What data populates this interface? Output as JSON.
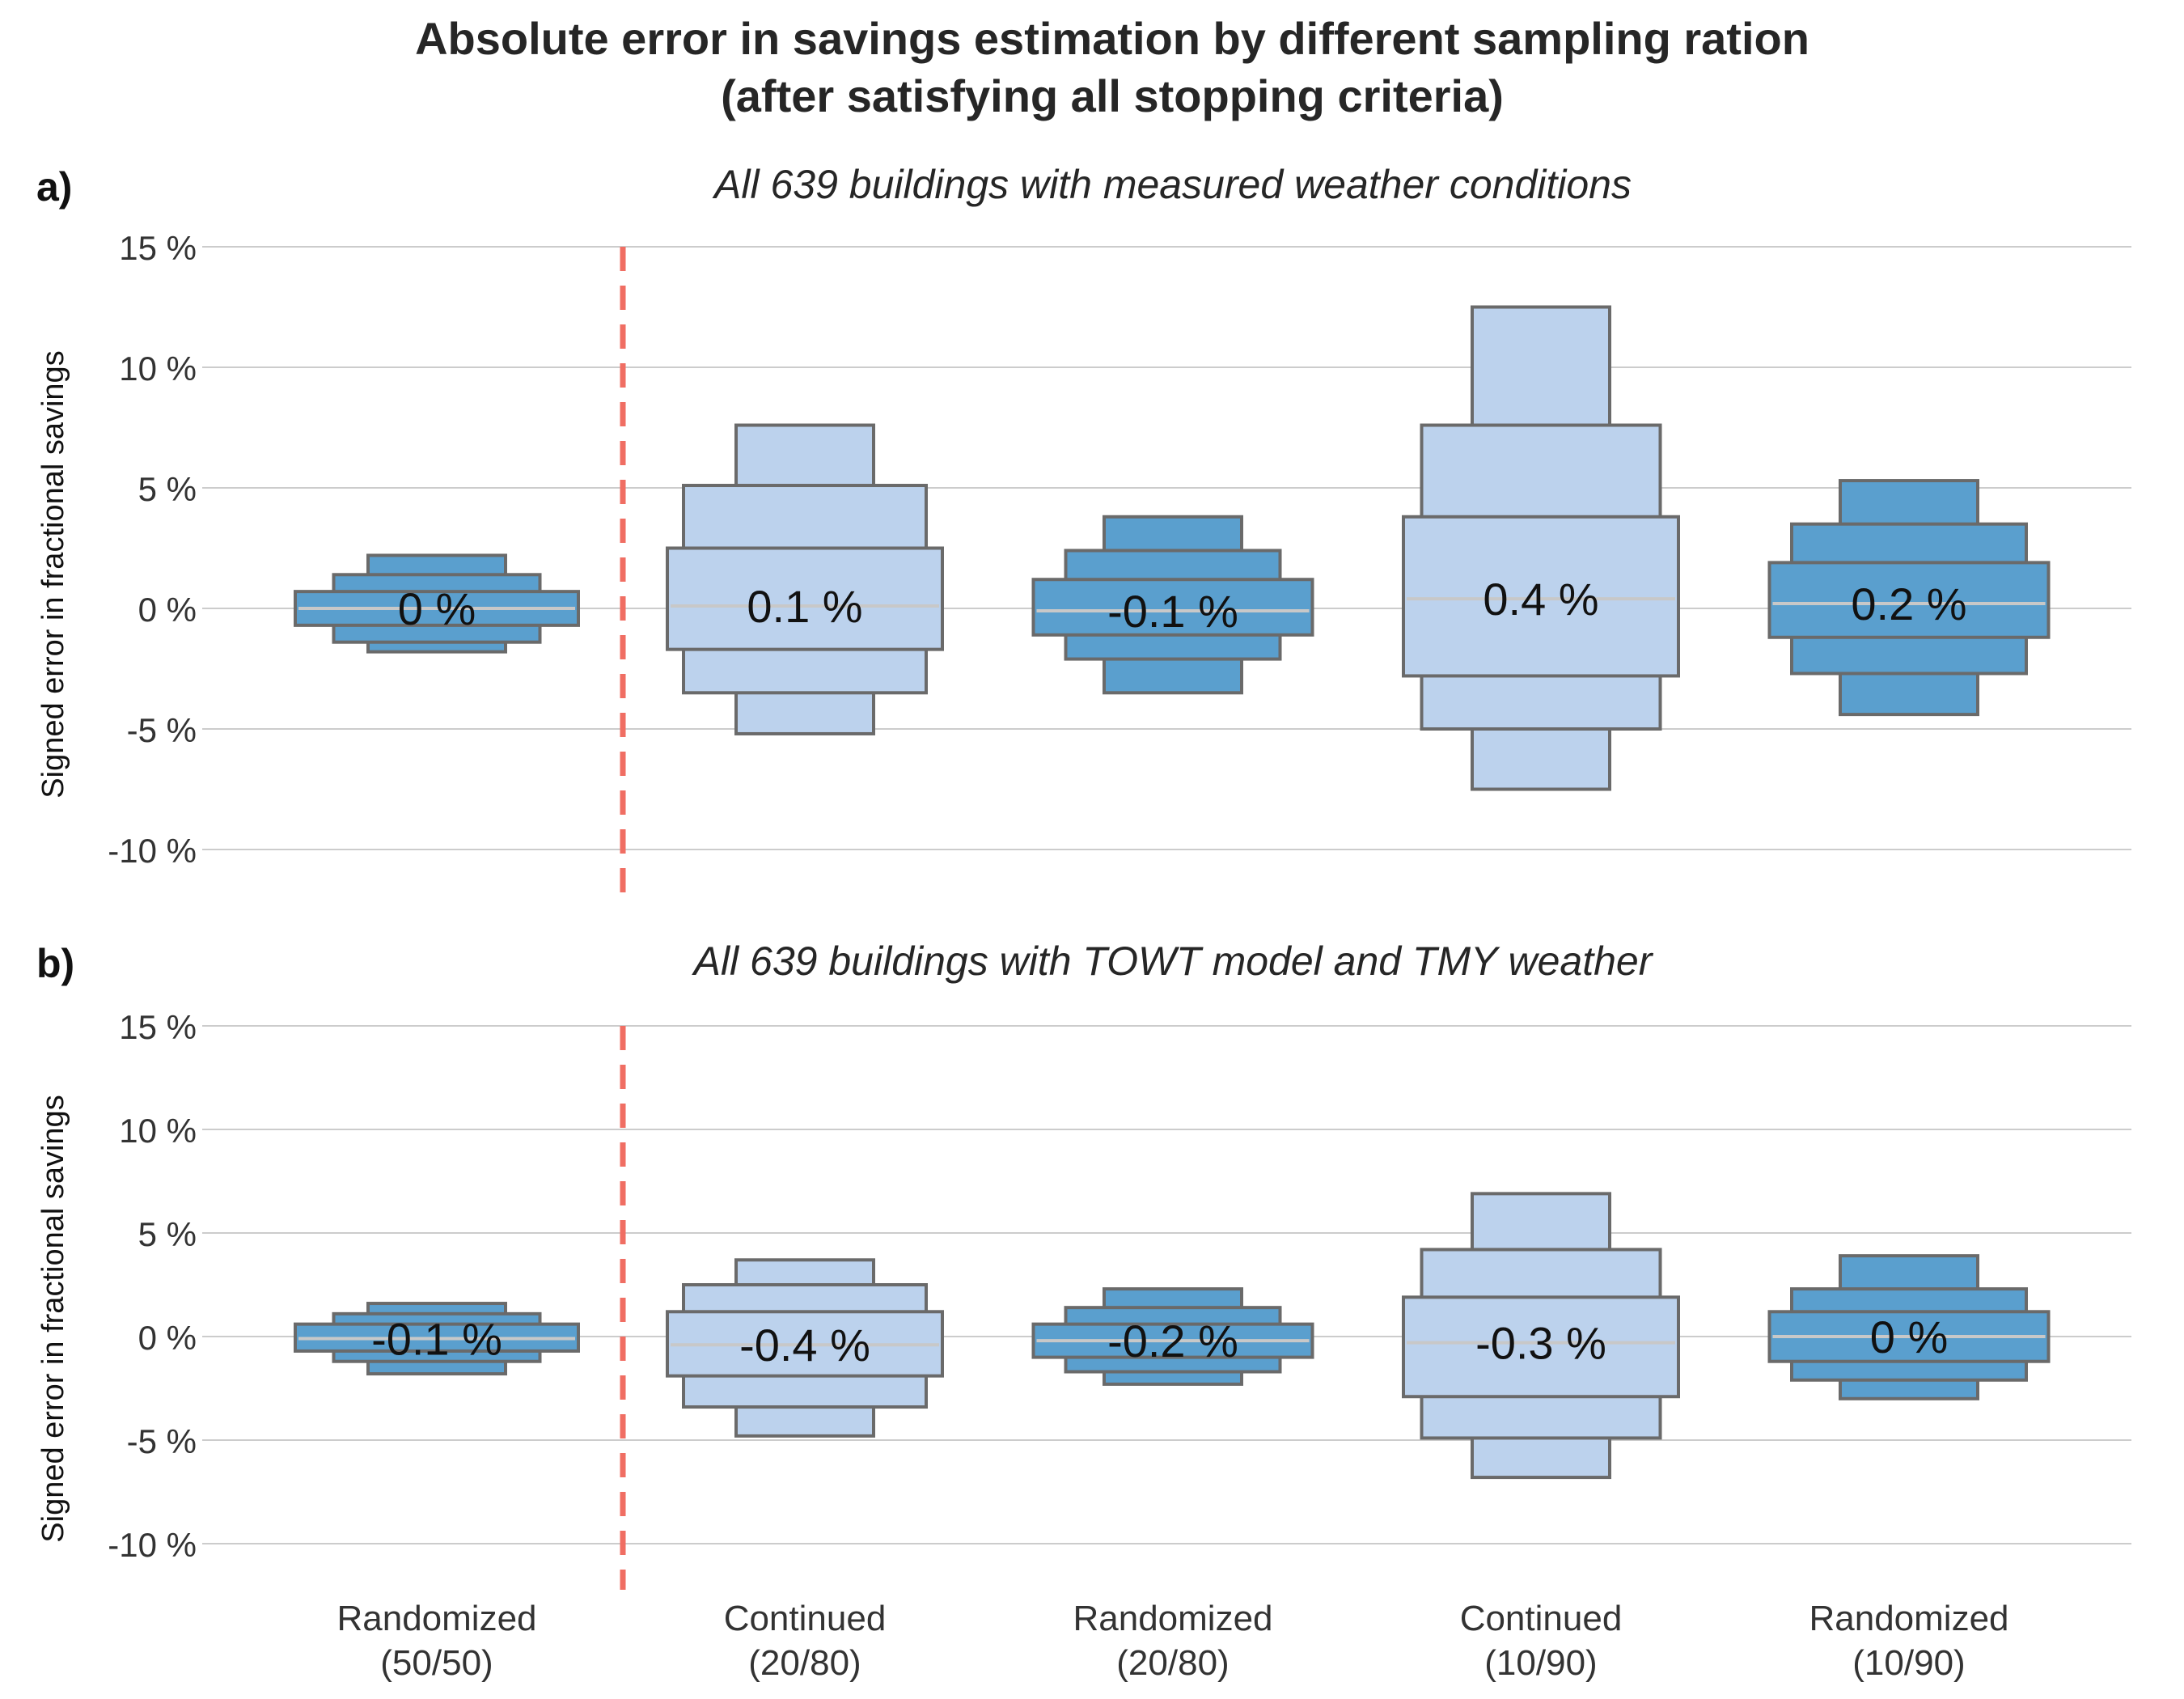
{
  "title_line1": "Absolute error in savings estimation by different sampling ration",
  "title_line2": "(after satisfying all stopping criteria)",
  "colors": {
    "dark": "#5a9fce",
    "light": "#bcd2ed",
    "edge": "#6a6a6a",
    "median": "#c8c8c8",
    "grid": "#cccccc",
    "divider": "#f06e63",
    "text": "#333333"
  },
  "chart_data": [
    {
      "type": "boxenplot",
      "panel_label": "a)",
      "title": "All 639 buildings with measured weather conditions",
      "ylabel": "Signed error in fractional savings",
      "ylim": [
        -11.5,
        15.0
      ],
      "yticks": [
        15,
        10,
        5,
        0,
        -5,
        -10
      ],
      "ytick_labels": [
        "15 %",
        "10 %",
        "5 %",
        "0 %",
        "-5 %",
        "-10 %"
      ],
      "grid": true,
      "divider_after_category": 0,
      "categories": [
        {
          "label": [
            "Randomized",
            "(50/50)"
          ],
          "color": "dark",
          "median": 0.0,
          "label_text": "0 %",
          "levels": [
            [
              -0.7,
              0.7
            ],
            [
              -1.4,
              1.4
            ],
            [
              -1.8,
              2.2
            ]
          ]
        },
        {
          "label": [
            "Continued",
            "(20/80)"
          ],
          "color": "light",
          "median": 0.1,
          "label_text": "0.1 %",
          "levels": [
            [
              -1.7,
              2.5
            ],
            [
              -3.5,
              5.1
            ],
            [
              -5.2,
              7.6
            ]
          ]
        },
        {
          "label": [
            "Randomized",
            "(20/80)"
          ],
          "color": "dark",
          "median": -0.1,
          "label_text": "-0.1 %",
          "levels": [
            [
              -1.1,
              1.2
            ],
            [
              -2.1,
              2.4
            ],
            [
              -3.5,
              3.8
            ]
          ]
        },
        {
          "label": [
            "Continued",
            "(10/90)"
          ],
          "color": "light",
          "median": 0.4,
          "label_text": "0.4 %",
          "levels": [
            [
              -2.8,
              3.8
            ],
            [
              -5.0,
              7.6
            ],
            [
              -7.5,
              12.5
            ]
          ]
        },
        {
          "label": [
            "Randomized",
            "(10/90)"
          ],
          "color": "dark",
          "median": 0.2,
          "label_text": "0.2 %",
          "levels": [
            [
              -1.2,
              1.9
            ],
            [
              -2.7,
              3.5
            ],
            [
              -4.4,
              5.3
            ]
          ]
        }
      ]
    },
    {
      "type": "boxenplot",
      "panel_label": "b)",
      "title": "All 639 buildings with TOWT model and TMY weather",
      "ylabel": "Signed error in fractional savings",
      "ylim": [
        -12.0,
        15.0
      ],
      "yticks": [
        15,
        10,
        5,
        0,
        -5,
        -10
      ],
      "ytick_labels": [
        "15 %",
        "10 %",
        "5 %",
        "0 %",
        "-5 %",
        "-10 %"
      ],
      "grid": true,
      "divider_after_category": 0,
      "categories": [
        {
          "label": [
            "Randomized",
            "(50/50)"
          ],
          "color": "dark",
          "median": -0.1,
          "label_text": "-0.1 %",
          "levels": [
            [
              -0.7,
              0.6
            ],
            [
              -1.2,
              1.1
            ],
            [
              -1.8,
              1.6
            ]
          ]
        },
        {
          "label": [
            "Continued",
            "(20/80)"
          ],
          "color": "light",
          "median": -0.4,
          "label_text": "-0.4 %",
          "levels": [
            [
              -1.9,
              1.2
            ],
            [
              -3.4,
              2.5
            ],
            [
              -4.8,
              3.7
            ]
          ]
        },
        {
          "label": [
            "Randomized",
            "(20/80)"
          ],
          "color": "dark",
          "median": -0.2,
          "label_text": "-0.2 %",
          "levels": [
            [
              -1.0,
              0.6
            ],
            [
              -1.7,
              1.4
            ],
            [
              -2.3,
              2.3
            ]
          ]
        },
        {
          "label": [
            "Continued",
            "(10/90)"
          ],
          "color": "light",
          "median": -0.3,
          "label_text": "-0.3 %",
          "levels": [
            [
              -2.9,
              1.9
            ],
            [
              -4.9,
              4.2
            ],
            [
              -6.8,
              6.9
            ]
          ]
        },
        {
          "label": [
            "Randomized",
            "(10/90)"
          ],
          "color": "dark",
          "median": 0.0,
          "label_text": "0 %",
          "levels": [
            [
              -1.2,
              1.2
            ],
            [
              -2.1,
              2.3
            ],
            [
              -3.0,
              3.9
            ]
          ]
        }
      ]
    }
  ]
}
